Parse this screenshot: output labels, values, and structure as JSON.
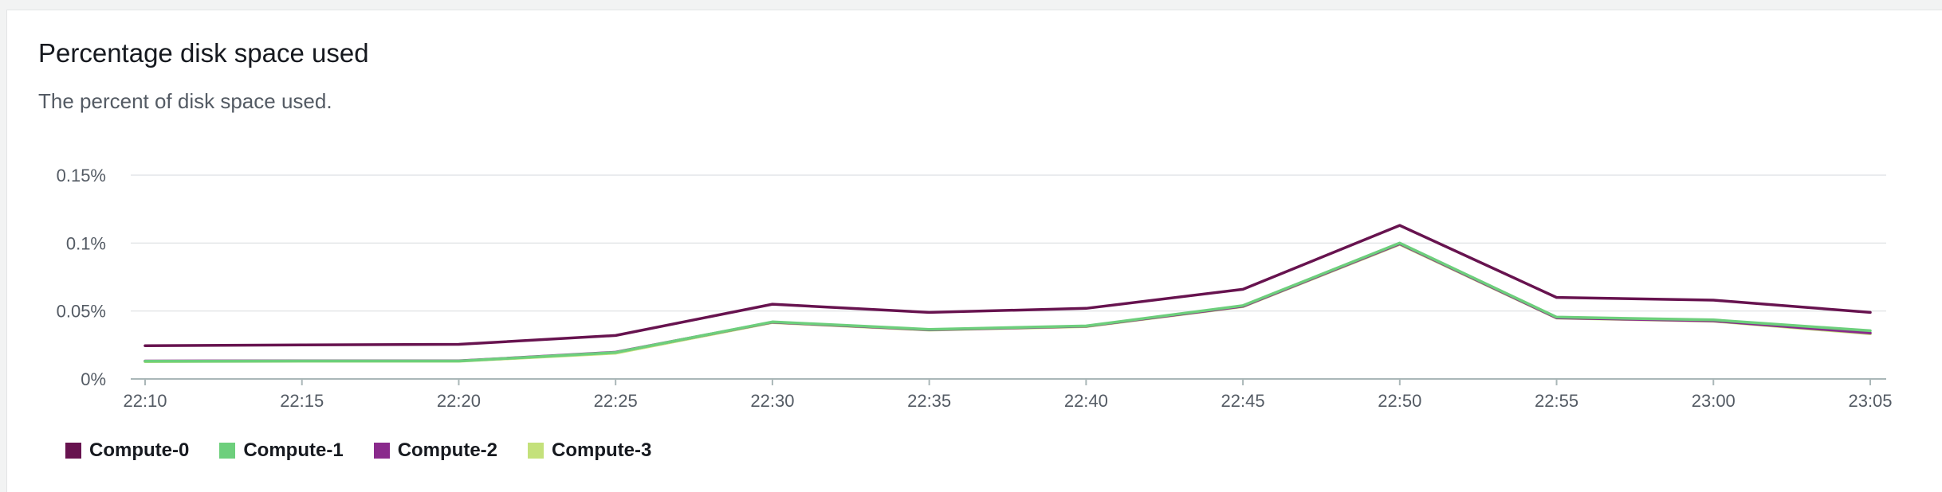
{
  "chart_data": {
    "type": "line",
    "title": "Percentage disk space used",
    "subtitle": "The percent of disk space used.",
    "x": [
      "22:10",
      "22:15",
      "22:20",
      "22:25",
      "22:30",
      "22:35",
      "22:40",
      "22:45",
      "22:50",
      "22:55",
      "23:00",
      "23:05"
    ],
    "x_tick_labels": [
      "22:10",
      "22:15",
      "22:20",
      "22:25",
      "22:30",
      "22:35",
      "22:40",
      "22:45",
      "22:50",
      "22:55",
      "23:00",
      "23:05"
    ],
    "ylim": [
      0,
      0.15
    ],
    "y_ticks": [
      0,
      0.05,
      0.1,
      0.15
    ],
    "y_tick_labels": [
      "0%",
      "0.05%",
      "0.1%",
      "0.15%"
    ],
    "grid": true,
    "legend_placement": "bottom-left",
    "series": [
      {
        "name": "Compute-0",
        "color": "#67134f",
        "values": [
          0.0245,
          0.025,
          0.0255,
          0.032,
          0.055,
          0.049,
          0.052,
          0.066,
          0.113,
          0.06,
          0.058,
          0.049
        ]
      },
      {
        "name": "Compute-1",
        "color": "#6dcf7c",
        "values": [
          0.013,
          0.0132,
          0.0132,
          0.0195,
          0.042,
          0.0365,
          0.039,
          0.054,
          0.1,
          0.0455,
          0.0435,
          0.0355
        ]
      },
      {
        "name": "Compute-2",
        "color": "#8a2a8c",
        "values": [
          0.0132,
          0.0133,
          0.0133,
          0.0197,
          0.0418,
          0.0362,
          0.0388,
          0.0535,
          0.0995,
          0.045,
          0.0428,
          0.0338
        ]
      },
      {
        "name": "Compute-3",
        "color": "#c4e17b",
        "values": [
          0.0128,
          0.013,
          0.013,
          0.019,
          0.0415,
          0.036,
          0.0385,
          0.0532,
          0.099,
          0.0448,
          0.0425,
          0.0332
        ]
      }
    ]
  }
}
